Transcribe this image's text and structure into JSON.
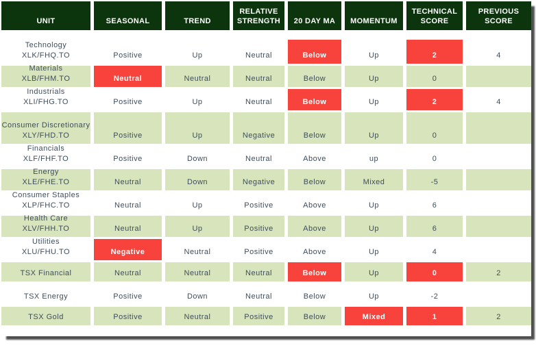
{
  "colors": {
    "header_bg": "#0c340d",
    "row_shade": "#d8e4bc",
    "highlight": "#f8423c",
    "text": "#3e4d5c",
    "header_text": "#ffffff"
  },
  "table": {
    "columns": [
      "UNIT",
      "SEASONAL",
      "TREND",
      "RELATIVE STRENGTH",
      "20 DAY MA",
      "MOMENTUM",
      "TECHNICAL SCORE",
      "PREVIOUS SCORE"
    ],
    "rows": [
      {
        "unit": {
          "name": "Technology",
          "ticker": "XLK/FHQ.TO"
        },
        "seasonal": {
          "text": "Positive",
          "highlight": false
        },
        "trend": {
          "text": "Up",
          "highlight": false
        },
        "relative_strength": {
          "text": "Neutral",
          "highlight": false
        },
        "ma_20day": {
          "text": "Below",
          "highlight": true
        },
        "momentum": {
          "text": "Up",
          "highlight": false
        },
        "technical_score": {
          "text": "2",
          "highlight": true
        },
        "previous_score": {
          "text": "4",
          "highlight": false
        }
      },
      {
        "unit": {
          "name": "Materials",
          "ticker": "XLB/FHM.TO"
        },
        "seasonal": {
          "text": "Neutral",
          "highlight": true
        },
        "trend": {
          "text": "Neutral",
          "highlight": false
        },
        "relative_strength": {
          "text": "Neutral",
          "highlight": false
        },
        "ma_20day": {
          "text": "Below",
          "highlight": false
        },
        "momentum": {
          "text": "Up",
          "highlight": false
        },
        "technical_score": {
          "text": "0",
          "highlight": false
        },
        "previous_score": {
          "text": "",
          "highlight": false
        }
      },
      {
        "unit": {
          "name": "Industrials",
          "ticker": "XLI/FHG.TO"
        },
        "seasonal": {
          "text": "Positive",
          "highlight": false
        },
        "trend": {
          "text": "Up",
          "highlight": false
        },
        "relative_strength": {
          "text": "Neutral",
          "highlight": false
        },
        "ma_20day": {
          "text": "Below",
          "highlight": true
        },
        "momentum": {
          "text": "Up",
          "highlight": false
        },
        "technical_score": {
          "text": "2",
          "highlight": true
        },
        "previous_score": {
          "text": "4",
          "highlight": false
        }
      },
      {
        "unit": {
          "name": "Consumer Discretionary",
          "ticker": "XLY/FHD.TO"
        },
        "seasonal": {
          "text": "Positive",
          "highlight": false
        },
        "trend": {
          "text": "Up",
          "highlight": false
        },
        "relative_strength": {
          "text": "Negative",
          "highlight": false
        },
        "ma_20day": {
          "text": "Below",
          "highlight": false
        },
        "momentum": {
          "text": "Up",
          "highlight": false
        },
        "technical_score": {
          "text": "0",
          "highlight": false
        },
        "previous_score": {
          "text": "",
          "highlight": false
        }
      },
      {
        "unit": {
          "name": "Financials",
          "ticker": "XLF/FHF.TO"
        },
        "seasonal": {
          "text": "Positive",
          "highlight": false
        },
        "trend": {
          "text": "Down",
          "highlight": false
        },
        "relative_strength": {
          "text": "Neutral",
          "highlight": false
        },
        "ma_20day": {
          "text": "Above",
          "highlight": false
        },
        "momentum": {
          "text": "up",
          "highlight": false
        },
        "technical_score": {
          "text": "0",
          "highlight": false
        },
        "previous_score": {
          "text": "",
          "highlight": false
        }
      },
      {
        "unit": {
          "name": "Energy",
          "ticker": "XLE/FHE.TO"
        },
        "seasonal": {
          "text": "Neutral",
          "highlight": false
        },
        "trend": {
          "text": "Down",
          "highlight": false
        },
        "relative_strength": {
          "text": "Negative",
          "highlight": false
        },
        "ma_20day": {
          "text": "Below",
          "highlight": false
        },
        "momentum": {
          "text": "Mixed",
          "highlight": false
        },
        "technical_score": {
          "text": "-5",
          "highlight": false
        },
        "previous_score": {
          "text": "",
          "highlight": false
        }
      },
      {
        "unit": {
          "name": "Consumer Staples",
          "ticker": "XLP/FHC.TO"
        },
        "seasonal": {
          "text": "Neutral",
          "highlight": false
        },
        "trend": {
          "text": "Up",
          "highlight": false
        },
        "relative_strength": {
          "text": "Positive",
          "highlight": false
        },
        "ma_20day": {
          "text": "Above",
          "highlight": false
        },
        "momentum": {
          "text": "Up",
          "highlight": false
        },
        "technical_score": {
          "text": "6",
          "highlight": false
        },
        "previous_score": {
          "text": "",
          "highlight": false
        }
      },
      {
        "unit": {
          "name": "Health Care",
          "ticker": "XLV/FHH.TO"
        },
        "seasonal": {
          "text": "Neutral",
          "highlight": false
        },
        "trend": {
          "text": "Up",
          "highlight": false
        },
        "relative_strength": {
          "text": "Positive",
          "highlight": false
        },
        "ma_20day": {
          "text": "Above",
          "highlight": false
        },
        "momentum": {
          "text": "Up",
          "highlight": false
        },
        "technical_score": {
          "text": "6",
          "highlight": false
        },
        "previous_score": {
          "text": "",
          "highlight": false
        }
      },
      {
        "unit": {
          "name": "Utilities",
          "ticker": "XLU/FHU.TO"
        },
        "seasonal": {
          "text": "Negative",
          "highlight": true
        },
        "trend": {
          "text": "Neutral",
          "highlight": false
        },
        "relative_strength": {
          "text": "Positive",
          "highlight": false
        },
        "ma_20day": {
          "text": "Above",
          "highlight": false
        },
        "momentum": {
          "text": "Up",
          "highlight": false
        },
        "technical_score": {
          "text": "4",
          "highlight": false
        },
        "previous_score": {
          "text": "",
          "highlight": false
        }
      },
      {
        "unit": {
          "name": "TSX Financial",
          "ticker": ""
        },
        "seasonal": {
          "text": "Neutral",
          "highlight": false
        },
        "trend": {
          "text": "Neutral",
          "highlight": false
        },
        "relative_strength": {
          "text": "Neutral",
          "highlight": false
        },
        "ma_20day": {
          "text": "Below",
          "highlight": true
        },
        "momentum": {
          "text": "Up",
          "highlight": false
        },
        "technical_score": {
          "text": "0",
          "highlight": true
        },
        "previous_score": {
          "text": "2",
          "highlight": false
        }
      },
      {
        "unit": {
          "name": "TSX Energy",
          "ticker": ""
        },
        "seasonal": {
          "text": "Positive",
          "highlight": false
        },
        "trend": {
          "text": "Down",
          "highlight": false
        },
        "relative_strength": {
          "text": "Neutral",
          "highlight": false
        },
        "ma_20day": {
          "text": "Below",
          "highlight": false
        },
        "momentum": {
          "text": "Up",
          "highlight": false
        },
        "technical_score": {
          "text": "-2",
          "highlight": false
        },
        "previous_score": {
          "text": "",
          "highlight": false
        }
      },
      {
        "unit": {
          "name": "TSX Gold",
          "ticker": ""
        },
        "seasonal": {
          "text": "Positive",
          "highlight": false
        },
        "trend": {
          "text": "Neutral",
          "highlight": false
        },
        "relative_strength": {
          "text": "Positive",
          "highlight": false
        },
        "ma_20day": {
          "text": "Below",
          "highlight": false
        },
        "momentum": {
          "text": "Mixed",
          "highlight": true
        },
        "technical_score": {
          "text": "1",
          "highlight": true
        },
        "previous_score": {
          "text": "2",
          "highlight": false
        }
      }
    ]
  }
}
